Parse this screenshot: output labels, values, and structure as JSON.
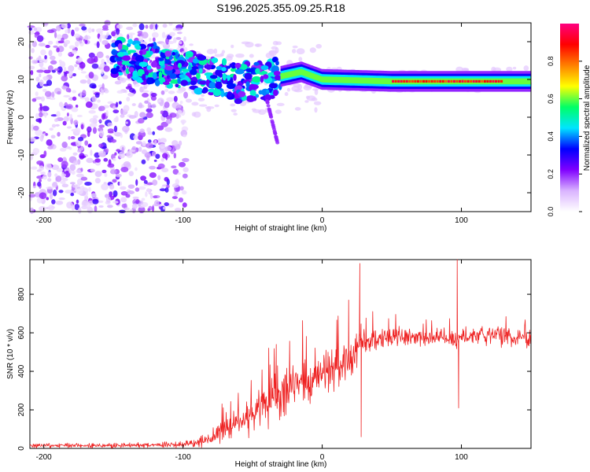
{
  "title": "S196.2025.355.09.25.R18",
  "chart_data": [
    {
      "type": "heatmap",
      "title": "S196.2025.355.09.25.R18",
      "xlabel": "Height of straight line (km)",
      "ylabel": "Frequency (Hz)",
      "xlim": [
        -210,
        150
      ],
      "ylim": [
        -25,
        25
      ],
      "xticks": [
        -200,
        -100,
        0,
        100
      ],
      "yticks": [
        -20,
        -10,
        0,
        10,
        20
      ],
      "colorbar": {
        "label": "Normalized spectral amplitude",
        "range": [
          0.0,
          1.0
        ],
        "ticks": [
          0.0,
          0.2,
          0.4,
          0.6,
          0.8
        ],
        "colors": [
          "#ffffff",
          "#d9b3ff",
          "#8000ff",
          "#0000ff",
          "#00e5ff",
          "#00ff66",
          "#ffff00",
          "#ff8000",
          "#ff0000",
          "#ff0080"
        ]
      },
      "description_values": {
        "ridge_frequency_hz": [
          {
            "x": -150,
            "y": 16
          },
          {
            "x": -120,
            "y": 14
          },
          {
            "x": -90,
            "y": 12
          },
          {
            "x": -60,
            "y": 9
          },
          {
            "x": -40,
            "y": 10
          },
          {
            "x": -15,
            "y": 12
          },
          {
            "x": 0,
            "y": 10
          },
          {
            "x": 50,
            "y": 9.5
          },
          {
            "x": 100,
            "y": 9.5
          },
          {
            "x": 150,
            "y": 9.5
          }
        ]
      }
    },
    {
      "type": "line",
      "xlabel": "Height of straight line (km)",
      "ylabel": "SNR (10 * v/v)",
      "xlim": [
        -210,
        150
      ],
      "ylim": [
        0,
        980
      ],
      "xticks": [
        -200,
        -100,
        0,
        100
      ],
      "yticks": [
        0,
        200,
        400,
        600,
        800
      ],
      "series": [
        {
          "name": "SNR",
          "color": "#ee2222",
          "envelope": {
            "x": [
              -210,
              -150,
              -100,
              -85,
              -70,
              -50,
              -35,
              -25,
              -10,
              10,
              20,
              25,
              28,
              35,
              60,
              90,
              96,
              100,
              110,
              130,
              150
            ],
            "baseline": [
              15,
              15,
              20,
              40,
              100,
              170,
              250,
              300,
              360,
              420,
              470,
              500,
              560,
              570,
              580,
              575,
              560,
              580,
              590,
              580,
              570
            ],
            "amplitude": [
              15,
              15,
              20,
              40,
              80,
              120,
              160,
              160,
              160,
              150,
              130,
              120,
              100,
              80,
              60,
              60,
              80,
              60,
              60,
              60,
              60
            ]
          },
          "spikes": [
            {
              "x": -33,
              "y": 540
            },
            {
              "x": 19,
              "y": 770
            },
            {
              "x": 27,
              "y": 960
            },
            {
              "x": 28,
              "y": 60
            },
            {
              "x": 97,
              "y": 980
            },
            {
              "x": 98,
              "y": 210
            }
          ]
        }
      ]
    }
  ]
}
